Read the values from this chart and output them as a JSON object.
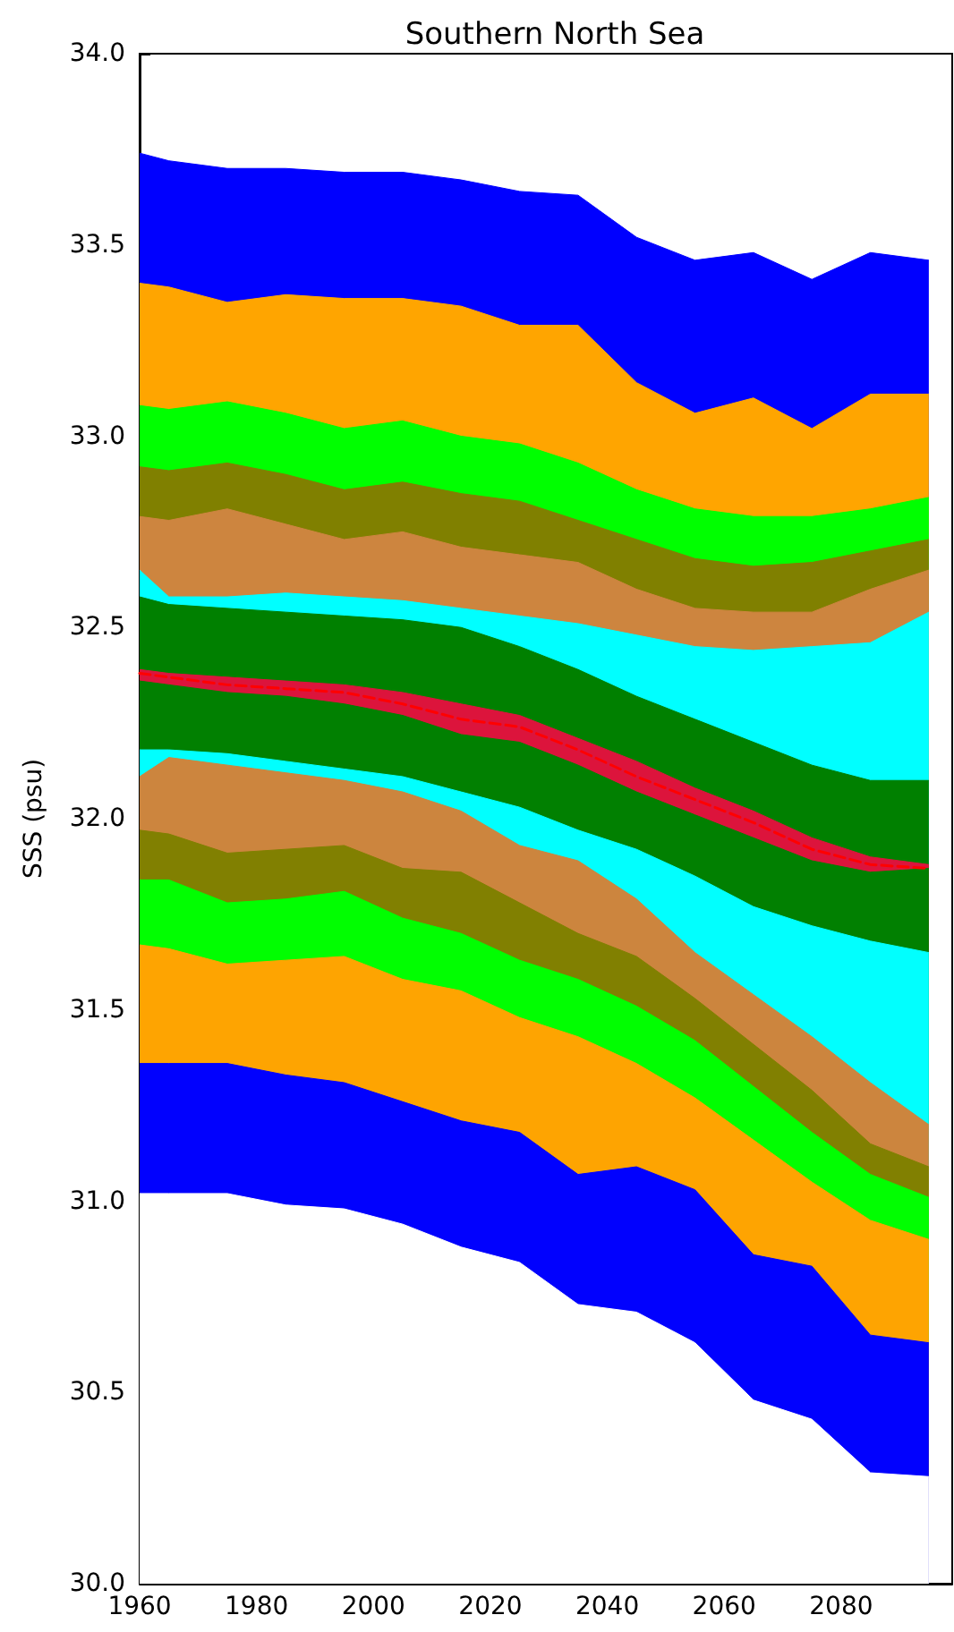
{
  "chart_data": {
    "type": "area",
    "title": "Southern North Sea",
    "ylabel": "SSS (psu)",
    "x": [
      1960,
      1965,
      1975,
      1985,
      1995,
      2005,
      2015,
      2025,
      2035,
      2045,
      2055,
      2065,
      2075,
      2085,
      2095
    ],
    "xlim": [
      1960,
      2099
    ],
    "xticks": [
      1960,
      1980,
      2000,
      2020,
      2040,
      2060,
      2080
    ],
    "ylim": [
      30,
      34
    ],
    "yticks": [
      {
        "value": 30,
        "label": "30.0"
      },
      30.5,
      {
        "value": 31,
        "label": "31.0"
      },
      31.5,
      {
        "value": 32,
        "label": "32.0"
      },
      32.5,
      {
        "value": 33,
        "label": "33.0"
      },
      33.5,
      {
        "value": 34,
        "label": "34.0"
      }
    ],
    "grid": false,
    "series": [
      {
        "color": "#0000ff",
        "values": [
          33.74,
          33.72,
          33.7,
          33.7,
          33.69,
          33.69,
          33.67,
          33.64,
          33.63,
          33.52,
          33.46,
          33.48,
          33.41,
          33.48,
          33.46
        ]
      },
      {
        "color": "#ffa500",
        "values": [
          33.4,
          33.39,
          33.35,
          33.37,
          33.36,
          33.36,
          33.34,
          33.29,
          33.29,
          33.14,
          33.06,
          33.1,
          33.02,
          33.11,
          33.11
        ]
      },
      {
        "color": "#00ff00",
        "values": [
          33.08,
          33.07,
          33.09,
          33.06,
          33.02,
          33.04,
          33.0,
          32.98,
          32.93,
          32.86,
          32.81,
          32.79,
          32.79,
          32.81,
          32.84
        ]
      },
      {
        "color": "#808000",
        "values": [
          32.92,
          32.91,
          32.93,
          32.9,
          32.86,
          32.88,
          32.85,
          32.83,
          32.78,
          32.73,
          32.68,
          32.66,
          32.67,
          32.7,
          32.73
        ]
      },
      {
        "color": "#cd853f",
        "values": [
          32.79,
          32.78,
          32.81,
          32.77,
          32.73,
          32.75,
          32.71,
          32.69,
          32.67,
          32.6,
          32.55,
          32.54,
          32.54,
          32.6,
          32.65
        ]
      },
      {
        "color": "#00ffff",
        "values": [
          32.65,
          32.58,
          32.58,
          32.59,
          32.58,
          32.57,
          32.55,
          32.53,
          32.51,
          32.48,
          32.45,
          32.44,
          32.45,
          32.46,
          32.54
        ]
      },
      {
        "color": "#008000",
        "values": [
          32.58,
          32.56,
          32.55,
          32.54,
          32.53,
          32.52,
          32.5,
          32.45,
          32.39,
          32.32,
          32.26,
          32.2,
          32.14,
          32.1,
          32.1
        ]
      },
      {
        "color": "#dc143c",
        "values": [
          32.39,
          32.38,
          32.37,
          32.36,
          32.35,
          32.33,
          32.3,
          32.27,
          32.21,
          32.15,
          32.08,
          32.02,
          31.95,
          31.9,
          31.88
        ]
      },
      {
        "color": "#018001",
        "values": [
          32.36,
          32.35,
          32.33,
          32.32,
          32.3,
          32.27,
          32.22,
          32.2,
          32.14,
          32.07,
          32.01,
          31.95,
          31.89,
          31.86,
          31.87
        ]
      },
      {
        "color": "#01fffe",
        "values": [
          32.18,
          32.18,
          32.17,
          32.15,
          32.13,
          32.11,
          32.07,
          32.03,
          31.97,
          31.92,
          31.85,
          31.77,
          31.72,
          31.68,
          31.65
        ]
      },
      {
        "color": "#cc853e",
        "values": [
          32.11,
          32.16,
          32.14,
          32.12,
          32.1,
          32.07,
          32.02,
          31.93,
          31.89,
          31.79,
          31.65,
          31.54,
          31.43,
          31.31,
          31.2
        ]
      },
      {
        "color": "#818001",
        "values": [
          31.97,
          31.96,
          31.91,
          31.92,
          31.93,
          31.87,
          31.86,
          31.78,
          31.7,
          31.64,
          31.53,
          31.41,
          31.29,
          31.15,
          31.09
        ]
      },
      {
        "color": "#01fe01",
        "values": [
          31.84,
          31.84,
          31.78,
          31.79,
          31.81,
          31.74,
          31.7,
          31.63,
          31.58,
          31.51,
          31.42,
          31.3,
          31.18,
          31.07,
          31.01
        ]
      },
      {
        "color": "#fea401",
        "values": [
          31.67,
          31.66,
          31.62,
          31.63,
          31.64,
          31.58,
          31.55,
          31.48,
          31.43,
          31.36,
          31.27,
          31.16,
          31.05,
          30.95,
          30.9
        ]
      },
      {
        "color": "#0101fe",
        "values": [
          31.36,
          31.36,
          31.36,
          31.33,
          31.31,
          31.26,
          31.21,
          31.18,
          31.07,
          31.09,
          31.03,
          30.86,
          30.83,
          30.65,
          30.63
        ]
      },
      {
        "color": "#ffffff",
        "values": [
          31.02,
          31.02,
          31.02,
          30.99,
          30.98,
          30.94,
          30.88,
          30.84,
          30.73,
          30.71,
          30.63,
          30.48,
          30.43,
          30.29,
          30.28
        ]
      },
      {
        "type": "line",
        "color": "#ff0000",
        "line_style": "dashed",
        "marker": "none",
        "values": [
          32.38,
          32.37,
          32.35,
          32.34,
          32.33,
          32.3,
          32.26,
          32.24,
          32.18,
          32.11,
          32.05,
          31.99,
          31.92,
          31.88,
          31.87
        ]
      }
    ]
  }
}
